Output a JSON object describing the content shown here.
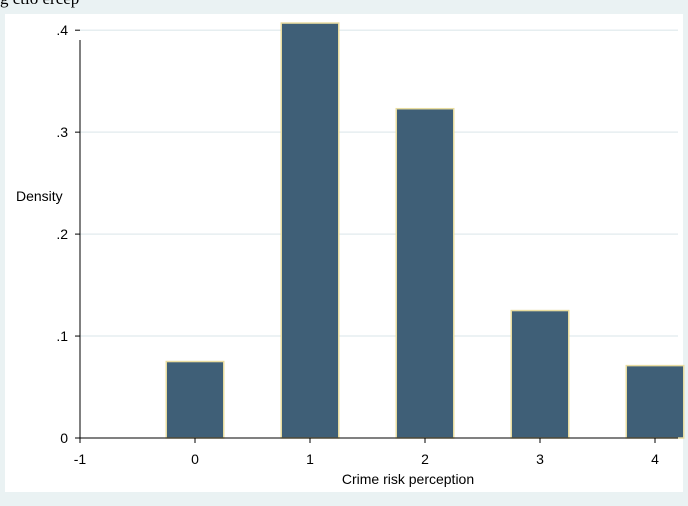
{
  "caption_fragment": "g         ctio   ercep  ",
  "colors": {
    "background": "#eaf2f3",
    "plot_background": "#ffffff",
    "bar_fill": "#3f5f77",
    "bar_outline": "#e8dca0",
    "grid": "#e6eef0",
    "axis": "#000000"
  },
  "chart_data": {
    "type": "bar",
    "title": "",
    "xlabel": "Crime risk perception",
    "ylabel": "Density",
    "categories": [
      "0",
      "1",
      "2",
      "3",
      "4"
    ],
    "x": [
      0,
      1,
      2,
      3,
      4
    ],
    "values": [
      0.075,
      0.407,
      0.323,
      0.125,
      0.071
    ],
    "bar_width": 0.5,
    "xlim": [
      -1,
      4.2
    ],
    "ylim": [
      0,
      0.41
    ],
    "xticks": [
      -1,
      0,
      1,
      2,
      3,
      4
    ],
    "xtick_labels": [
      "-1",
      "0",
      "1",
      "2",
      "3",
      "4"
    ],
    "yticks": [
      0,
      0.1,
      0.2,
      0.3,
      0.4
    ],
    "ytick_labels": [
      "0",
      ".1",
      ".2",
      ".3",
      ".4"
    ],
    "grid": true,
    "legend": "none"
  }
}
